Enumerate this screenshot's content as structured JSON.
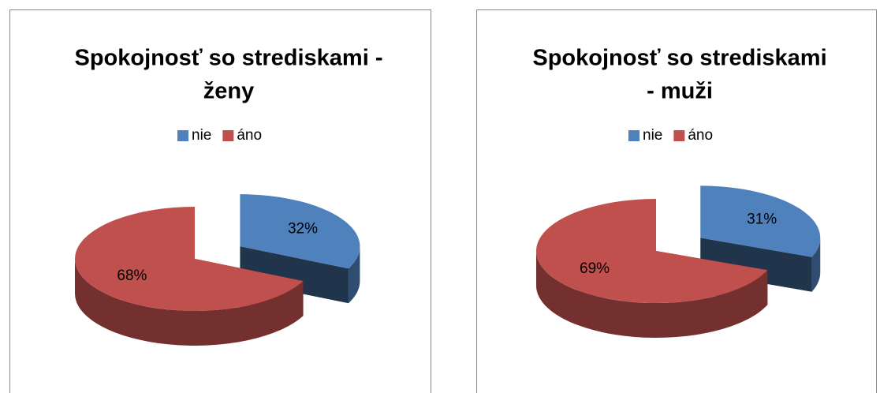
{
  "chart_data": [
    {
      "type": "pie",
      "title": [
        "Spokojnosť so strediskami -",
        "ženy"
      ],
      "categories": [
        "nie",
        "áno"
      ],
      "values": [
        32,
        68
      ],
      "value_labels": [
        "32%",
        "68%"
      ],
      "colors": [
        "#4f81bd",
        "#c0504d"
      ],
      "legend": "top"
    },
    {
      "type": "pie",
      "title": [
        "Spokojnosť so strediskami",
        "- muži"
      ],
      "categories": [
        "nie",
        "áno"
      ],
      "values": [
        31,
        69
      ],
      "value_labels": [
        "31%",
        "69%"
      ],
      "colors": [
        "#4f81bd",
        "#c0504d"
      ],
      "legend": "top"
    }
  ]
}
